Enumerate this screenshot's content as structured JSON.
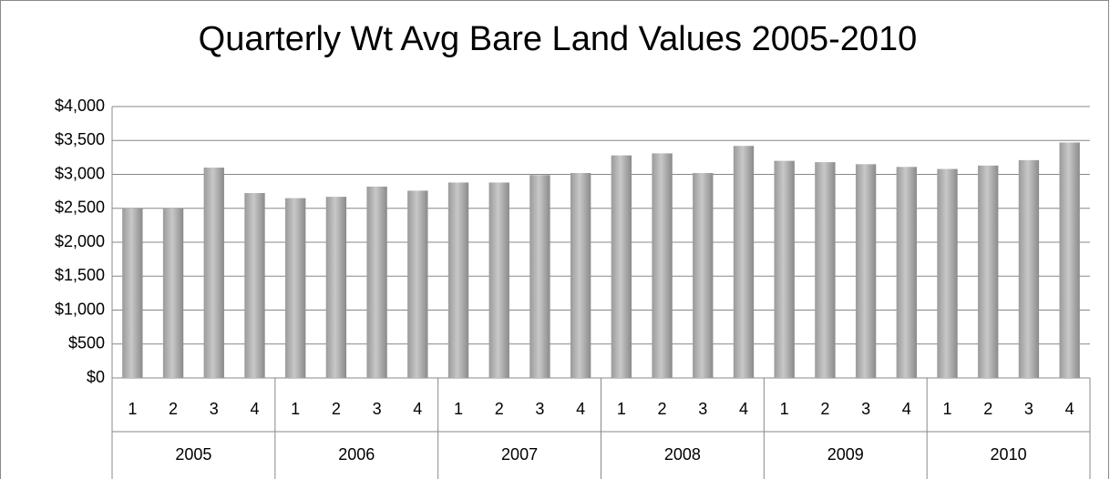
{
  "chart_data": {
    "type": "bar",
    "title": "Quarterly Wt Avg Bare Land Values 2005-2010",
    "groups": [
      {
        "label": "2005",
        "categories": [
          "1",
          "2",
          "3",
          "4"
        ]
      },
      {
        "label": "2006",
        "categories": [
          "1",
          "2",
          "3",
          "4"
        ]
      },
      {
        "label": "2007",
        "categories": [
          "1",
          "2",
          "3",
          "4"
        ]
      },
      {
        "label": "2008",
        "categories": [
          "1",
          "2",
          "3",
          "4"
        ]
      },
      {
        "label": "2009",
        "categories": [
          "1",
          "2",
          "3",
          "4"
        ]
      },
      {
        "label": "2010",
        "categories": [
          "1",
          "2",
          "3",
          "4"
        ]
      }
    ],
    "values": [
      2500,
      2500,
      3100,
      2725,
      2650,
      2670,
      2820,
      2760,
      2880,
      2880,
      2990,
      3020,
      3280,
      3310,
      3020,
      3420,
      3200,
      3180,
      3150,
      3110,
      3080,
      3130,
      3210,
      3470
    ],
    "color": "#c8c8c8",
    "ylim": [
      0,
      4000
    ],
    "yticks": [
      {
        "value": 0,
        "label": "$0"
      },
      {
        "value": 500,
        "label": "$500"
      },
      {
        "value": 1000,
        "label": "$1,000"
      },
      {
        "value": 1500,
        "label": "$1,500"
      },
      {
        "value": 2000,
        "label": "$2,000"
      },
      {
        "value": 2500,
        "label": "$2,500"
      },
      {
        "value": 3000,
        "label": "$3,000"
      },
      {
        "value": 3500,
        "label": "$3,500"
      },
      {
        "value": 4000,
        "label": "$4,000"
      }
    ],
    "grid": true
  }
}
